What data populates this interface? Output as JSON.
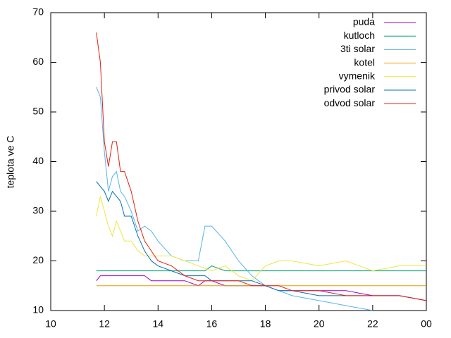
{
  "chart_data": {
    "type": "line",
    "ylabel": "teplota ve C",
    "x": [
      11.7,
      11.85,
      12.0,
      12.15,
      12.3,
      12.45,
      12.6,
      12.75,
      13.0,
      13.25,
      13.5,
      13.75,
      14.0,
      14.5,
      15.0,
      15.5,
      15.75,
      16.0,
      16.5,
      17.0,
      17.5,
      18.0,
      18.5,
      19.0,
      20.0,
      21.0,
      22.0,
      23.0,
      24.0
    ],
    "series": [
      {
        "name": "puda",
        "color": "#9400d3",
        "values": [
          16,
          17,
          17,
          17,
          17,
          17,
          17,
          17,
          17,
          17,
          17,
          16,
          16,
          16,
          16,
          15,
          16,
          16,
          15,
          15,
          15,
          15,
          14,
          14,
          14,
          14,
          13,
          13,
          12
        ]
      },
      {
        "name": "kutloch",
        "color": "#009e73",
        "values": [
          18,
          18,
          18,
          18,
          18,
          18,
          18,
          18,
          18,
          18,
          18,
          18,
          18,
          18,
          18,
          18,
          18,
          19,
          18,
          18,
          18,
          18,
          18,
          18,
          18,
          18,
          18,
          18,
          18
        ]
      },
      {
        "name": "3ti solar",
        "color": "#56b4e9",
        "values": [
          55,
          53,
          42,
          34,
          37,
          38,
          34,
          33,
          30,
          26,
          27,
          26,
          24,
          21,
          20,
          20,
          27,
          27,
          24,
          20,
          17,
          15,
          14,
          13,
          12,
          11,
          10,
          null,
          null
        ]
      },
      {
        "name": "kotel",
        "color": "#e69f00",
        "values": [
          15,
          15,
          15,
          15,
          15,
          15,
          15,
          15,
          15,
          15,
          15,
          15,
          15,
          15,
          15,
          15,
          15,
          15,
          15,
          15,
          15,
          15,
          15,
          15,
          15,
          15,
          15,
          15,
          15
        ]
      },
      {
        "name": "vymenik",
        "color": "#f0e442",
        "values": [
          29,
          33,
          30,
          27,
          25,
          28,
          26,
          24,
          24,
          22,
          21,
          21,
          21,
          21,
          20,
          19,
          18.5,
          18,
          19,
          17,
          16,
          19,
          20,
          20,
          19,
          20,
          18,
          19,
          19
        ]
      },
      {
        "name": "privod solar",
        "color": "#0072b2",
        "values": [
          36,
          35,
          34,
          32,
          34,
          33,
          32,
          29,
          29,
          25,
          22,
          20,
          19,
          18,
          17,
          17,
          17,
          16,
          16,
          16,
          16,
          15,
          14,
          14,
          13,
          13,
          13,
          13,
          12
        ]
      },
      {
        "name": "odvod solar",
        "color": "#e51e10",
        "values": [
          66,
          60,
          44,
          39,
          44,
          44,
          38,
          38,
          34,
          28,
          24,
          22,
          20,
          19,
          17,
          16,
          16,
          16,
          16,
          16,
          15,
          15,
          15,
          14,
          14,
          13,
          13,
          13,
          12
        ]
      }
    ],
    "xlim": [
      10,
      24
    ],
    "xticks": [
      10,
      12,
      14,
      16,
      18,
      20,
      22,
      {
        "value": 24,
        "label": "00"
      }
    ],
    "ylim": [
      10,
      70
    ],
    "yticks": [
      10,
      20,
      30,
      40,
      50,
      60,
      70
    ],
    "legend": "top-right"
  }
}
